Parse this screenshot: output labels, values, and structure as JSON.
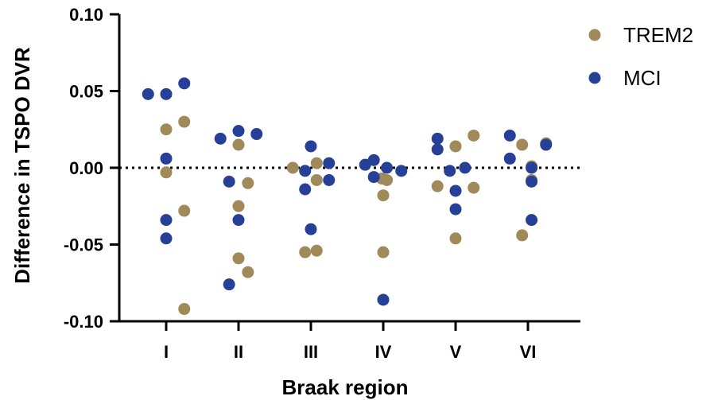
{
  "chart_data": {
    "type": "scatter",
    "title": "",
    "xlabel": "Braak region",
    "ylabel": "Difference in TSPO DVR",
    "categories": [
      "I",
      "II",
      "III",
      "IV",
      "V",
      "VI"
    ],
    "ylim": [
      -0.1,
      0.1
    ],
    "y_ticks": [
      "-0.10",
      "-0.05",
      "0.00",
      "0.05",
      "0.10"
    ],
    "y_tick_values": [
      -0.1,
      -0.05,
      0.0,
      0.05,
      0.1
    ],
    "reference_line": {
      "y": 0,
      "style": "dotted"
    },
    "legend_position": "top-right",
    "series": [
      {
        "name": "TREM2",
        "color": "#a08a5a",
        "points": [
          {
            "category": "I",
            "offset": 0,
            "y": 0.025
          },
          {
            "category": "I",
            "offset": 0,
            "y": -0.003
          },
          {
            "category": "I",
            "offset": 0.25,
            "y": 0.03
          },
          {
            "category": "I",
            "offset": 0.25,
            "y": -0.028
          },
          {
            "category": "I",
            "offset": 0.25,
            "y": -0.092
          },
          {
            "category": "II",
            "offset": 0,
            "y": 0.015
          },
          {
            "category": "II",
            "offset": 0.13,
            "y": -0.01
          },
          {
            "category": "II",
            "offset": 0,
            "y": -0.025
          },
          {
            "category": "II",
            "offset": 0,
            "y": -0.059
          },
          {
            "category": "II",
            "offset": 0.13,
            "y": -0.068
          },
          {
            "category": "III",
            "offset": -0.25,
            "y": 0.0
          },
          {
            "category": "III",
            "offset": 0.08,
            "y": 0.003
          },
          {
            "category": "III",
            "offset": 0.08,
            "y": -0.008
          },
          {
            "category": "III",
            "offset": -0.08,
            "y": -0.055
          },
          {
            "category": "III",
            "offset": 0.08,
            "y": -0.054
          },
          {
            "category": "IV",
            "offset": -0.02,
            "y": -0.007
          },
          {
            "category": "IV",
            "offset": 0.05,
            "y": -0.008
          },
          {
            "category": "IV",
            "offset": 0.0,
            "y": -0.018
          },
          {
            "category": "IV",
            "offset": 0.0,
            "y": -0.055
          },
          {
            "category": "V",
            "offset": -0.25,
            "y": -0.012
          },
          {
            "category": "V",
            "offset": 0.0,
            "y": 0.014
          },
          {
            "category": "V",
            "offset": 0.25,
            "y": 0.021
          },
          {
            "category": "V",
            "offset": 0.25,
            "y": -0.013
          },
          {
            "category": "V",
            "offset": 0.0,
            "y": -0.046
          },
          {
            "category": "VI",
            "offset": -0.08,
            "y": 0.015
          },
          {
            "category": "VI",
            "offset": 0.25,
            "y": 0.016
          },
          {
            "category": "VI",
            "offset": 0.05,
            "y": 0.001
          },
          {
            "category": "VI",
            "offset": 0.05,
            "y": -0.008
          },
          {
            "category": "VI",
            "offset": -0.08,
            "y": -0.044
          }
        ]
      },
      {
        "name": "MCI",
        "color": "#263f97",
        "points": [
          {
            "category": "I",
            "offset": -0.25,
            "y": 0.048
          },
          {
            "category": "I",
            "offset": 0,
            "y": 0.048
          },
          {
            "category": "I",
            "offset": 0.25,
            "y": 0.055
          },
          {
            "category": "I",
            "offset": 0,
            "y": 0.006
          },
          {
            "category": "I",
            "offset": 0,
            "y": -0.034
          },
          {
            "category": "I",
            "offset": 0,
            "y": -0.046
          },
          {
            "category": "II",
            "offset": -0.25,
            "y": 0.019
          },
          {
            "category": "II",
            "offset": 0,
            "y": 0.024
          },
          {
            "category": "II",
            "offset": 0.25,
            "y": 0.022
          },
          {
            "category": "II",
            "offset": -0.13,
            "y": -0.009
          },
          {
            "category": "II",
            "offset": 0,
            "y": -0.034
          },
          {
            "category": "II",
            "offset": -0.13,
            "y": -0.076
          },
          {
            "category": "III",
            "offset": 0.0,
            "y": 0.014
          },
          {
            "category": "III",
            "offset": -0.08,
            "y": -0.002
          },
          {
            "category": "III",
            "offset": 0.25,
            "y": 0.003
          },
          {
            "category": "III",
            "offset": -0.08,
            "y": -0.014
          },
          {
            "category": "III",
            "offset": 0.25,
            "y": -0.008
          },
          {
            "category": "III",
            "offset": 0.0,
            "y": -0.04
          },
          {
            "category": "IV",
            "offset": -0.25,
            "y": 0.002
          },
          {
            "category": "IV",
            "offset": -0.13,
            "y": 0.005
          },
          {
            "category": "IV",
            "offset": 0.05,
            "y": 0.0
          },
          {
            "category": "IV",
            "offset": 0.25,
            "y": -0.002
          },
          {
            "category": "IV",
            "offset": -0.13,
            "y": -0.006
          },
          {
            "category": "IV",
            "offset": 0.0,
            "y": -0.086
          },
          {
            "category": "V",
            "offset": -0.25,
            "y": 0.019
          },
          {
            "category": "V",
            "offset": -0.25,
            "y": 0.012
          },
          {
            "category": "V",
            "offset": -0.08,
            "y": -0.002
          },
          {
            "category": "V",
            "offset": 0.13,
            "y": 0.0
          },
          {
            "category": "V",
            "offset": 0.0,
            "y": -0.015
          },
          {
            "category": "V",
            "offset": 0.0,
            "y": -0.027
          },
          {
            "category": "VI",
            "offset": -0.25,
            "y": 0.021
          },
          {
            "category": "VI",
            "offset": -0.25,
            "y": 0.006
          },
          {
            "category": "VI",
            "offset": 0.05,
            "y": 0.0
          },
          {
            "category": "VI",
            "offset": 0.05,
            "y": -0.009
          },
          {
            "category": "VI",
            "offset": 0.25,
            "y": 0.015
          },
          {
            "category": "VI",
            "offset": 0.05,
            "y": -0.034
          }
        ]
      }
    ]
  }
}
